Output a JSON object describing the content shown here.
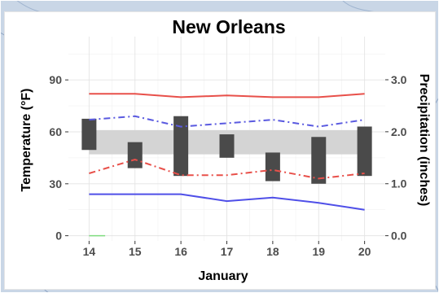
{
  "chart_data": {
    "type": "line",
    "title": "New Orleans",
    "xlabel": "January",
    "ylabel": "Temperature (°F)",
    "y2label": "Precipitation (inches)",
    "x": [
      14,
      15,
      16,
      17,
      18,
      19,
      20
    ],
    "x_ticks": [
      "14",
      "15",
      "16",
      "17",
      "18",
      "19",
      "20"
    ],
    "ylim": [
      -3,
      115
    ],
    "y_ticks": [
      "0",
      "30",
      "60",
      "90"
    ],
    "y2lim": [
      -0.1,
      3.83
    ],
    "y2_ticks": [
      "0.0",
      "1.0",
      "2.0",
      "3.0"
    ],
    "grid": true,
    "normal_band": {
      "low": 47,
      "high": 61
    },
    "series": [
      {
        "values": [
          82,
          82,
          80,
          81,
          80,
          80,
          82
        ],
        "color": "#e8504a",
        "style": "solid"
      },
      {
        "values": [
          67,
          69,
          63,
          65,
          67,
          63,
          67
        ],
        "color": "#5a5ae0",
        "style": "dashdot"
      },
      {
        "values": [
          36,
          44,
          35,
          35,
          38,
          33,
          36
        ],
        "color": "#e8504a",
        "style": "dashdot"
      },
      {
        "values": [
          24,
          24,
          24,
          20,
          22,
          19,
          15
        ],
        "color": "#4f4fe8",
        "style": "solid"
      }
    ],
    "precip_bars": [
      {
        "x": 14,
        "low": 1.65,
        "high": 2.25
      },
      {
        "x": 15,
        "low": 1.3,
        "high": 1.8
      },
      {
        "x": 16,
        "low": 1.15,
        "high": 2.3
      },
      {
        "x": 17,
        "low": 1.5,
        "high": 1.95
      },
      {
        "x": 18,
        "low": 1.05,
        "high": 1.6
      },
      {
        "x": 19,
        "low": 1.0,
        "high": 1.9
      },
      {
        "x": 20,
        "low": 1.15,
        "high": 2.1
      }
    ],
    "bar_color": "#4a4a4a",
    "band_color": "#d4d4d4",
    "green_line": {
      "x_start": 14,
      "x_end": 14.35,
      "value": 0,
      "color": "#7fdc7f"
    }
  }
}
